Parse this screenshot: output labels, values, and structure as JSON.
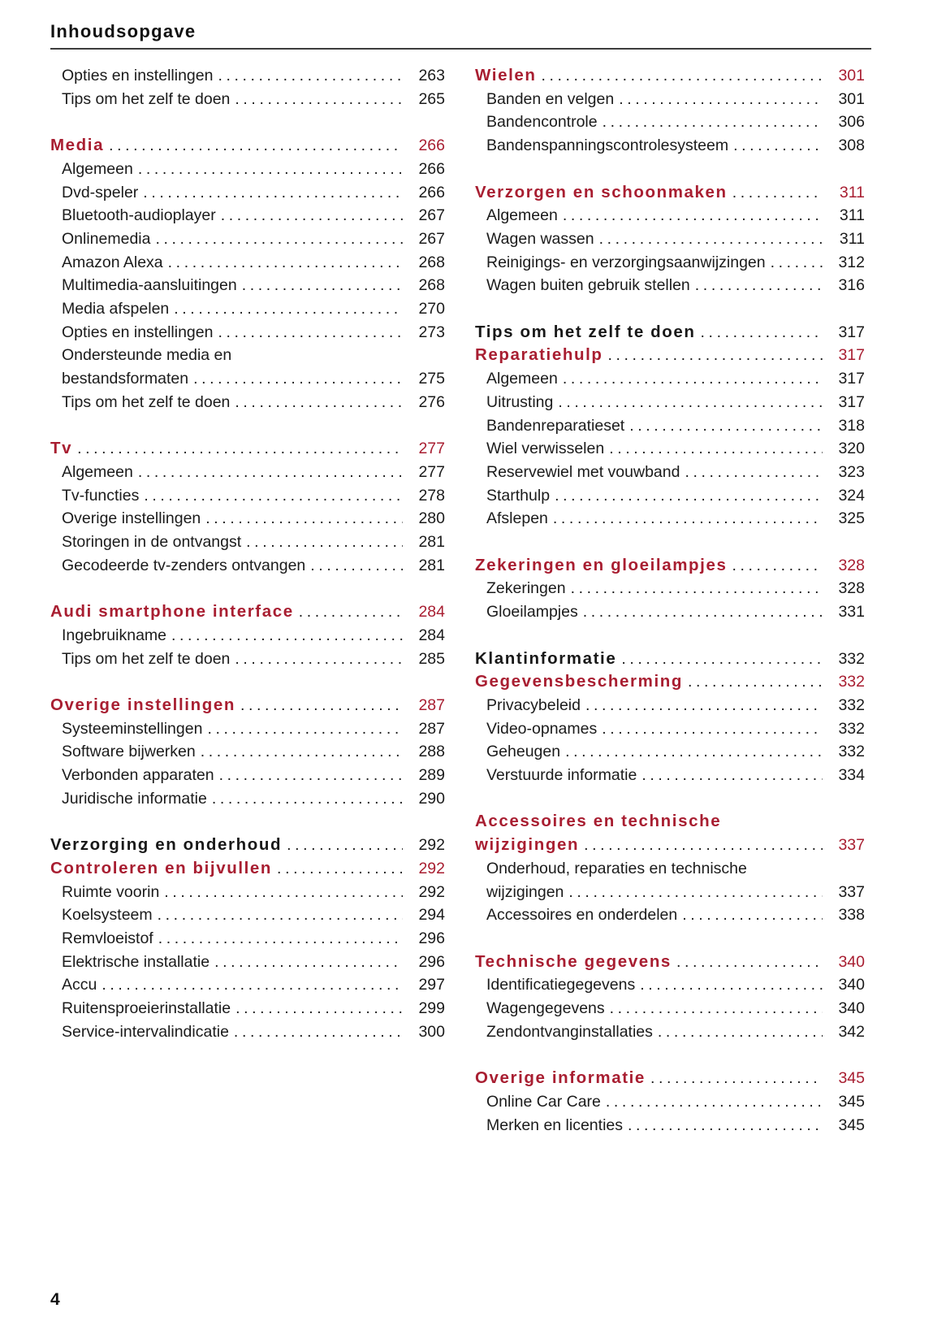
{
  "page": {
    "title": "Inhoudsopgave",
    "number": "4"
  },
  "colors": {
    "accent_red": "#a81e31",
    "text": "#1b1b1b",
    "rule": "#3d3d3d"
  },
  "columns": [
    {
      "blocks": [
        {
          "rows": [
            {
              "type": "entry",
              "label": "Opties en instellingen",
              "page": "263"
            },
            {
              "type": "entry",
              "label": "Tips om het zelf te doen",
              "page": "265"
            }
          ]
        },
        {
          "rows": [
            {
              "type": "section-red",
              "label": "Media",
              "page": "266"
            },
            {
              "type": "entry",
              "label": "Algemeen",
              "page": "266"
            },
            {
              "type": "entry",
              "label": "Dvd-speler",
              "page": "266"
            },
            {
              "type": "entry",
              "label": "Bluetooth-audioplayer",
              "page": "267"
            },
            {
              "type": "entry",
              "label": "Onlinemedia",
              "page": "267"
            },
            {
              "type": "entry",
              "label": "Amazon Alexa",
              "page": "268"
            },
            {
              "type": "entry",
              "label": "Multimedia-aansluitingen",
              "page": "268"
            },
            {
              "type": "entry",
              "label": "Media afspelen",
              "page": "270"
            },
            {
              "type": "entry",
              "label": "Opties en instellingen",
              "page": "273"
            },
            {
              "type": "entry",
              "pre": "Ondersteunde media en",
              "label": "bestandsformaten",
              "page": "275"
            },
            {
              "type": "entry",
              "label": "Tips om het zelf te doen",
              "page": "276"
            }
          ]
        },
        {
          "rows": [
            {
              "type": "section-red",
              "label": "Tv",
              "page": "277"
            },
            {
              "type": "entry",
              "label": "Algemeen",
              "page": "277"
            },
            {
              "type": "entry",
              "label": "Tv-functies",
              "page": "278"
            },
            {
              "type": "entry",
              "label": "Overige instellingen",
              "page": "280"
            },
            {
              "type": "entry",
              "label": "Storingen in de ontvangst",
              "page": "281"
            },
            {
              "type": "entry",
              "label": "Gecodeerde tv-zenders ontvangen",
              "page": "281"
            }
          ]
        },
        {
          "rows": [
            {
              "type": "section-red",
              "label": "Audi smartphone interface",
              "page": "284"
            },
            {
              "type": "entry",
              "label": "Ingebruikname",
              "page": "284"
            },
            {
              "type": "entry",
              "label": "Tips om het zelf te doen",
              "page": "285"
            }
          ]
        },
        {
          "rows": [
            {
              "type": "section-red",
              "label": "Overige instellingen",
              "page": "287"
            },
            {
              "type": "entry",
              "label": "Systeeminstellingen",
              "page": "287"
            },
            {
              "type": "entry",
              "label": "Software bijwerken",
              "page": "288"
            },
            {
              "type": "entry",
              "label": "Verbonden apparaten",
              "page": "289"
            },
            {
              "type": "entry",
              "label": "Juridische informatie",
              "page": "290"
            }
          ]
        },
        {
          "rows": [
            {
              "type": "section-black",
              "label": "Verzorging en onderhoud",
              "page": "292"
            },
            {
              "type": "section-red",
              "label": "Controleren en bijvullen",
              "page": "292"
            },
            {
              "type": "entry",
              "label": "Ruimte voorin",
              "page": "292"
            },
            {
              "type": "entry",
              "label": "Koelsysteem",
              "page": "294"
            },
            {
              "type": "entry",
              "label": "Remvloeistof",
              "page": "296"
            },
            {
              "type": "entry",
              "label": "Elektrische installatie",
              "page": "296"
            },
            {
              "type": "entry",
              "label": "Accu",
              "page": "297"
            },
            {
              "type": "entry",
              "label": "Ruitensproeierinstallatie",
              "page": "299"
            },
            {
              "type": "entry",
              "label": "Service-intervalindicatie",
              "page": "300"
            }
          ]
        }
      ]
    },
    {
      "blocks": [
        {
          "rows": [
            {
              "type": "section-red",
              "label": "Wielen",
              "page": "301"
            },
            {
              "type": "entry",
              "label": "Banden en velgen",
              "page": "301"
            },
            {
              "type": "entry",
              "label": "Bandencontrole",
              "page": "306"
            },
            {
              "type": "entry",
              "label": "Bandenspanningscontrolesysteem",
              "page": "308"
            }
          ]
        },
        {
          "rows": [
            {
              "type": "section-red",
              "label": "Verzorgen en schoonmaken",
              "page": "311"
            },
            {
              "type": "entry",
              "label": "Algemeen",
              "page": "311"
            },
            {
              "type": "entry",
              "label": "Wagen wassen",
              "page": "311"
            },
            {
              "type": "entry",
              "label": "Reinigings- en verzorgingsaanwijzingen",
              "page": "312"
            },
            {
              "type": "entry",
              "label": "Wagen buiten gebruik stellen",
              "page": "316"
            }
          ]
        },
        {
          "rows": [
            {
              "type": "section-black",
              "label": "Tips om het zelf te doen",
              "page": "317"
            },
            {
              "type": "section-red",
              "label": "Reparatiehulp",
              "page": "317"
            },
            {
              "type": "entry",
              "label": "Algemeen",
              "page": "317"
            },
            {
              "type": "entry",
              "label": "Uitrusting",
              "page": "317"
            },
            {
              "type": "entry",
              "label": "Bandenreparatieset",
              "page": "318"
            },
            {
              "type": "entry",
              "label": "Wiel verwisselen",
              "page": "320"
            },
            {
              "type": "entry",
              "label": "Reservewiel met vouwband",
              "page": "323"
            },
            {
              "type": "entry",
              "label": "Starthulp",
              "page": "324"
            },
            {
              "type": "entry",
              "label": "Afslepen",
              "page": "325"
            }
          ]
        },
        {
          "rows": [
            {
              "type": "section-red",
              "label": "Zekeringen en gloeilampjes",
              "page": "328"
            },
            {
              "type": "entry",
              "label": "Zekeringen",
              "page": "328"
            },
            {
              "type": "entry",
              "label": "Gloeilampjes",
              "page": "331"
            }
          ]
        },
        {
          "rows": [
            {
              "type": "section-black",
              "label": "Klantinformatie",
              "page": "332"
            },
            {
              "type": "section-red",
              "label": "Gegevensbescherming",
              "page": "332"
            },
            {
              "type": "entry",
              "label": "Privacybeleid",
              "page": "332"
            },
            {
              "type": "entry",
              "label": "Video-opnames",
              "page": "332"
            },
            {
              "type": "entry",
              "label": "Geheugen",
              "page": "332"
            },
            {
              "type": "entry",
              "label": "Verstuurde informatie",
              "page": "334"
            }
          ]
        },
        {
          "rows": [
            {
              "type": "section-red",
              "pre": "Accessoires en technische",
              "label": "wijzigingen",
              "page": "337"
            },
            {
              "type": "entry",
              "pre": "Onderhoud, reparaties en technische",
              "label": "wijzigingen",
              "page": "337"
            },
            {
              "type": "entry",
              "label": "Accessoires en onderdelen",
              "page": "338"
            }
          ]
        },
        {
          "rows": [
            {
              "type": "section-red",
              "label": "Technische gegevens",
              "page": "340"
            },
            {
              "type": "entry",
              "label": "Identificatiegegevens",
              "page": "340"
            },
            {
              "type": "entry",
              "label": "Wagengegevens",
              "page": "340"
            },
            {
              "type": "entry",
              "label": "Zendontvanginstallaties",
              "page": "342"
            }
          ]
        },
        {
          "rows": [
            {
              "type": "section-red",
              "label": "Overige informatie",
              "page": "345"
            },
            {
              "type": "entry",
              "label": "Online Car Care",
              "page": "345"
            },
            {
              "type": "entry",
              "label": "Merken en licenties",
              "page": "345"
            }
          ]
        }
      ]
    }
  ]
}
